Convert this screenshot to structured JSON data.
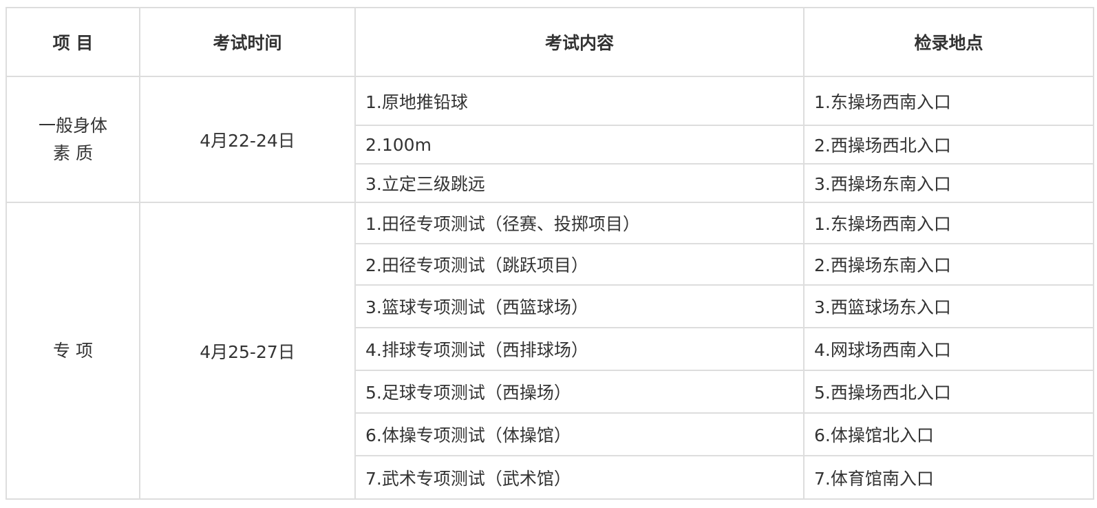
{
  "headers": [
    "项 目",
    "考试时间",
    "考试内容",
    "检录地点"
  ],
  "groups": [
    {
      "category_line1": "一般身体",
      "category_line2": "素 质",
      "date": "4月22-24日",
      "items": [
        {
          "content": "1.原地推铅球",
          "location": "1.东操场西南入口"
        },
        {
          "content": "2.100m",
          "location": "2.西操场西北入口"
        },
        {
          "content": "3.立定三级跳远",
          "location": "3.西操场东南入口"
        }
      ]
    },
    {
      "category_line1": "专 项",
      "date": "4月25-27日",
      "items": [
        {
          "content": "1.田径专项测试（径赛、投掷项目）",
          "location": "1.东操场西南入口"
        },
        {
          "content": "2.田径专项测试（跳跃项目）",
          "location": "2.西操场东南入口"
        },
        {
          "content": "3.篮球专项测试（西篮球场）",
          "location": "3.西篮球场东入口"
        },
        {
          "content": "4.排球专项测试（西排球场）",
          "location": "4.网球场西南入口"
        },
        {
          "content": "5.足球专项测试（西操场）",
          "location": "5.西操场西北入口"
        },
        {
          "content": "6.体操专项测试（体操馆）",
          "location": "6.体操馆北入口"
        },
        {
          "content": "7.武术专项测试（武术馆）",
          "location": "7.体育馆南入口"
        }
      ]
    }
  ]
}
